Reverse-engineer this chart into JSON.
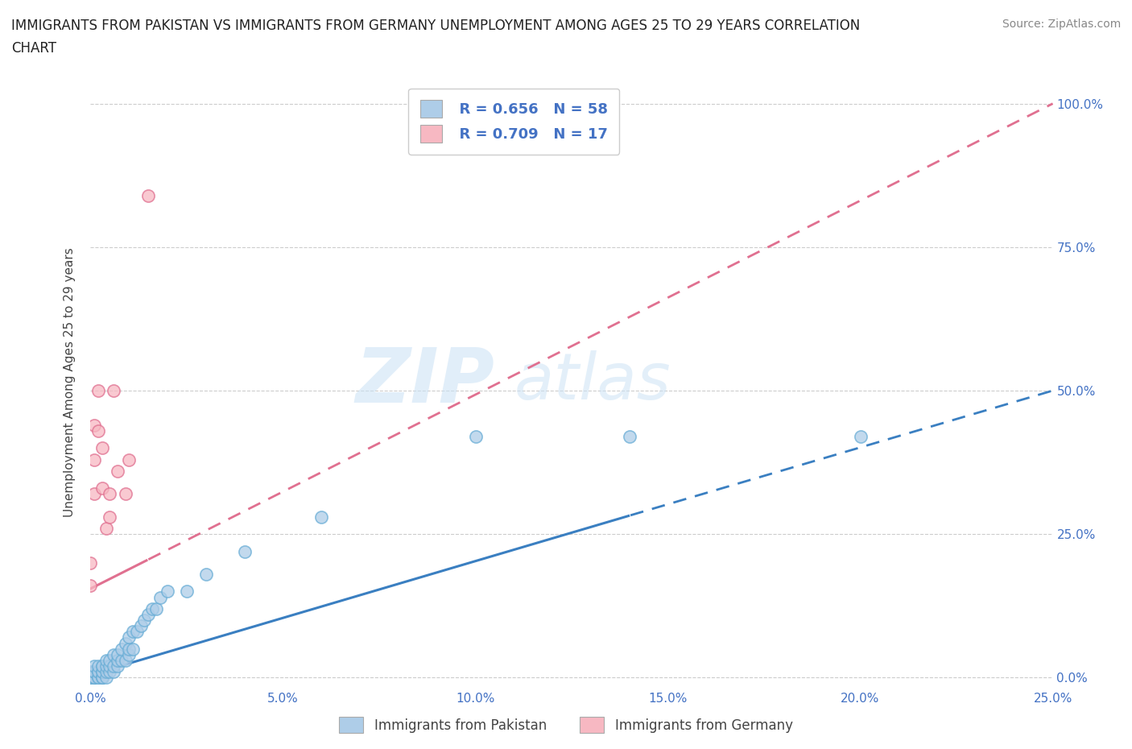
{
  "title_line1": "IMMIGRANTS FROM PAKISTAN VS IMMIGRANTS FROM GERMANY UNEMPLOYMENT AMONG AGES 25 TO 29 YEARS CORRELATION",
  "title_line2": "CHART",
  "source_text": "Source: ZipAtlas.com",
  "ylabel": "Unemployment Among Ages 25 to 29 years",
  "watermark_zip": "ZIP",
  "watermark_atlas": "atlas",
  "pakistan": {
    "R": 0.656,
    "N": 58,
    "scatter_color": "#aecde8",
    "scatter_edge": "#6aaed6",
    "line_color": "#3a7fc1",
    "line_intercept": 0.005,
    "line_slope": 1.98
  },
  "germany": {
    "R": 0.709,
    "N": 17,
    "scatter_color": "#f7b8c2",
    "scatter_edge": "#e07090",
    "line_color": "#e07090",
    "line_intercept": 0.155,
    "line_slope": 3.38
  },
  "pak_scatter_x": [
    0.0,
    0.0,
    0.0,
    0.001,
    0.001,
    0.001,
    0.001,
    0.001,
    0.001,
    0.002,
    0.002,
    0.002,
    0.002,
    0.002,
    0.003,
    0.003,
    0.003,
    0.003,
    0.003,
    0.003,
    0.003,
    0.004,
    0.004,
    0.004,
    0.004,
    0.005,
    0.005,
    0.005,
    0.006,
    0.006,
    0.006,
    0.007,
    0.007,
    0.007,
    0.008,
    0.008,
    0.009,
    0.009,
    0.01,
    0.01,
    0.01,
    0.011,
    0.011,
    0.012,
    0.013,
    0.014,
    0.015,
    0.016,
    0.017,
    0.018,
    0.02,
    0.025,
    0.03,
    0.04,
    0.06,
    0.1,
    0.14,
    0.2
  ],
  "pak_scatter_y": [
    0.0,
    0.0,
    0.01,
    0.0,
    0.0,
    0.0,
    0.01,
    0.01,
    0.02,
    0.0,
    0.0,
    0.01,
    0.01,
    0.02,
    0.0,
    0.0,
    0.0,
    0.01,
    0.01,
    0.02,
    0.02,
    0.0,
    0.01,
    0.02,
    0.03,
    0.01,
    0.02,
    0.03,
    0.01,
    0.02,
    0.04,
    0.02,
    0.03,
    0.04,
    0.03,
    0.05,
    0.03,
    0.06,
    0.04,
    0.05,
    0.07,
    0.05,
    0.08,
    0.08,
    0.09,
    0.1,
    0.11,
    0.12,
    0.12,
    0.14,
    0.15,
    0.15,
    0.18,
    0.22,
    0.28,
    0.42,
    0.42,
    0.42
  ],
  "ger_scatter_x": [
    0.0,
    0.0,
    0.001,
    0.001,
    0.001,
    0.002,
    0.002,
    0.003,
    0.003,
    0.004,
    0.005,
    0.005,
    0.006,
    0.007,
    0.009,
    0.01,
    0.015
  ],
  "ger_scatter_y": [
    0.16,
    0.2,
    0.32,
    0.38,
    0.44,
    0.43,
    0.5,
    0.33,
    0.4,
    0.26,
    0.28,
    0.32,
    0.5,
    0.36,
    0.32,
    0.38,
    0.84
  ],
  "xlim": [
    0.0,
    0.25
  ],
  "ylim": [
    -0.02,
    1.05
  ],
  "xtick_vals": [
    0.0,
    0.05,
    0.1,
    0.15,
    0.2,
    0.25
  ],
  "xtick_labels": [
    "0.0%",
    "5.0%",
    "10.0%",
    "15.0%",
    "20.0%",
    "25.0%"
  ],
  "ytick_vals": [
    0.0,
    0.25,
    0.5,
    0.75,
    1.0
  ],
  "ytick_labels": [
    "0.0%",
    "25.0%",
    "50.0%",
    "75.0%",
    "100.0%"
  ],
  "legend_pakistan": "Immigrants from Pakistan",
  "legend_germany": "Immigrants from Germany",
  "legend_color_pakistan": "#aecde8",
  "legend_color_germany": "#f7b8c2",
  "background_color": "#ffffff",
  "grid_color": "#cccccc",
  "title_color": "#222222",
  "axis_label_color": "#444444",
  "tick_label_color": "#4472c4",
  "source_color": "#888888"
}
